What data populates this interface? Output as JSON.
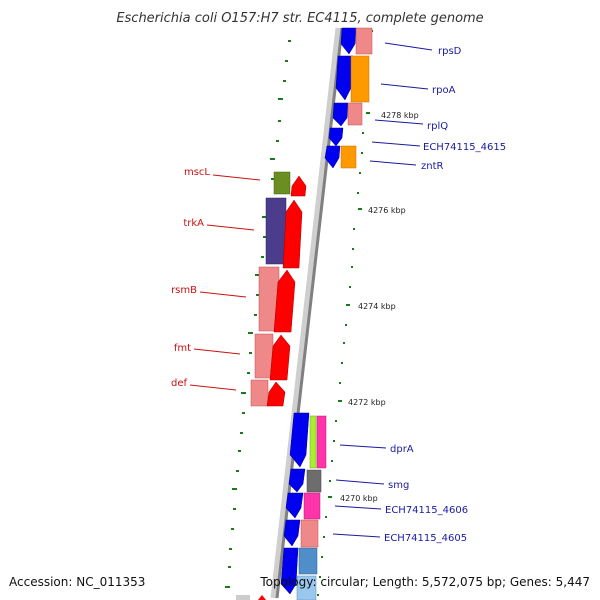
{
  "header": {
    "title": "Escherichia coli O157:H7 str. EC4115, complete genome"
  },
  "footer": {
    "accession": "Accession: NC_011353",
    "topology": "Topology: circular; Length: 5,572,075 bp; Genes: 5,447"
  },
  "scale_ticks": [
    "4278 kbp",
    "4276 kbp",
    "4274 kbp",
    "4272 kbp",
    "4270 kbp"
  ],
  "genes_right": [
    "rpsD",
    "rpoA",
    "rplQ",
    "ECH74115_4615",
    "zntR",
    "dprA",
    "smg",
    "ECH74115_4606",
    "ECH74115_4605"
  ],
  "genes_left": [
    "mscL",
    "trkA",
    "rsmB",
    "fmt",
    "def"
  ],
  "colors": {
    "forward_cds": "#ff0000",
    "reverse_cds": "#0000ee",
    "backbone": "#888888",
    "tick": "#1a7a1a",
    "label_blue": "#1a1aa0",
    "label_red": "#cc1111"
  }
}
